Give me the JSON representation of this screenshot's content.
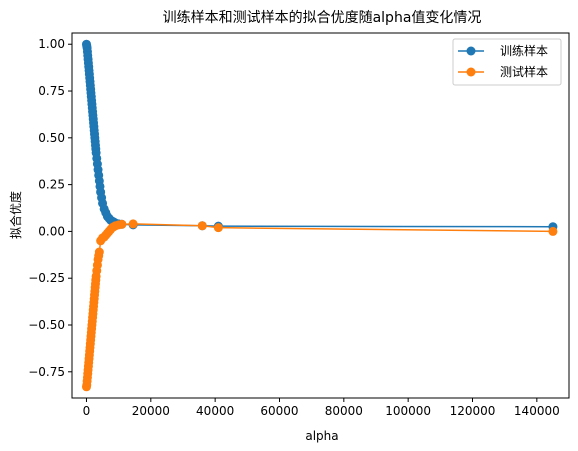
{
  "chart_data": {
    "type": "line",
    "title": "训练样本和测试样本的拟合优度随alpha值变化情况",
    "xlabel": "alpha",
    "ylabel": "拟合优度",
    "xlim": [
      -4500,
      150000
    ],
    "ylim": [
      -0.89,
      1.06
    ],
    "xticks": [
      0,
      20000,
      40000,
      60000,
      80000,
      100000,
      120000,
      140000
    ],
    "yticks": [
      -0.75,
      -0.5,
      -0.25,
      0.0,
      0.25,
      0.5,
      0.75,
      1.0
    ],
    "xtick_labels": [
      "0",
      "20000",
      "40000",
      "60000",
      "80000",
      "100000",
      "120000",
      "140000"
    ],
    "ytick_labels": [
      "−0.75",
      "−0.50",
      "−0.25",
      "0.00",
      "0.25",
      "0.50",
      "0.75",
      "1.00"
    ],
    "grid": false,
    "legend_position": "top-right",
    "series": [
      {
        "name": "训练样本",
        "color": "#1f77b4",
        "marker": "circle",
        "points": [
          [
            0,
            1.0
          ],
          [
            100,
            0.99
          ],
          [
            200,
            0.98
          ],
          [
            300,
            0.96
          ],
          [
            400,
            0.94
          ],
          [
            500,
            0.92
          ],
          [
            600,
            0.9
          ],
          [
            700,
            0.88
          ],
          [
            800,
            0.86
          ],
          [
            900,
            0.84
          ],
          [
            1000,
            0.82
          ],
          [
            1100,
            0.8
          ],
          [
            1200,
            0.78
          ],
          [
            1300,
            0.76
          ],
          [
            1400,
            0.74
          ],
          [
            1500,
            0.72
          ],
          [
            1600,
            0.7
          ],
          [
            1700,
            0.68
          ],
          [
            1800,
            0.66
          ],
          [
            1900,
            0.64
          ],
          [
            2000,
            0.62
          ],
          [
            2100,
            0.6
          ],
          [
            2200,
            0.58
          ],
          [
            2300,
            0.56
          ],
          [
            2400,
            0.54
          ],
          [
            2500,
            0.52
          ],
          [
            2600,
            0.5
          ],
          [
            2700,
            0.48
          ],
          [
            2800,
            0.46
          ],
          [
            2900,
            0.44
          ],
          [
            3000,
            0.42
          ],
          [
            3200,
            0.39
          ],
          [
            3400,
            0.36
          ],
          [
            3600,
            0.33
          ],
          [
            3800,
            0.3
          ],
          [
            4000,
            0.27
          ],
          [
            4200,
            0.24
          ],
          [
            4400,
            0.21
          ],
          [
            4700,
            0.18
          ],
          [
            5000,
            0.15
          ],
          [
            5500,
            0.12
          ],
          [
            6000,
            0.1
          ],
          [
            6500,
            0.08
          ],
          [
            7000,
            0.07
          ],
          [
            7500,
            0.06
          ],
          [
            8000,
            0.055
          ],
          [
            8500,
            0.05
          ],
          [
            9000,
            0.045
          ],
          [
            10000,
            0.04
          ],
          [
            11000,
            0.038
          ],
          [
            14500,
            0.035
          ],
          [
            36000,
            0.03
          ],
          [
            41000,
            0.028
          ],
          [
            145000,
            0.025
          ]
        ]
      },
      {
        "name": "测试样本",
        "color": "#ff7f0e",
        "marker": "circle",
        "points": [
          [
            0,
            -0.83
          ],
          [
            100,
            -0.82
          ],
          [
            200,
            -0.8
          ],
          [
            300,
            -0.78
          ],
          [
            400,
            -0.76
          ],
          [
            500,
            -0.74
          ],
          [
            600,
            -0.72
          ],
          [
            700,
            -0.7
          ],
          [
            800,
            -0.68
          ],
          [
            900,
            -0.66
          ],
          [
            1000,
            -0.64
          ],
          [
            1100,
            -0.62
          ],
          [
            1200,
            -0.6
          ],
          [
            1300,
            -0.58
          ],
          [
            1400,
            -0.56
          ],
          [
            1500,
            -0.54
          ],
          [
            1600,
            -0.52
          ],
          [
            1700,
            -0.5
          ],
          [
            1800,
            -0.48
          ],
          [
            1900,
            -0.46
          ],
          [
            2000,
            -0.44
          ],
          [
            2100,
            -0.42
          ],
          [
            2200,
            -0.4
          ],
          [
            2300,
            -0.38
          ],
          [
            2400,
            -0.36
          ],
          [
            2500,
            -0.34
          ],
          [
            2600,
            -0.32
          ],
          [
            2700,
            -0.3
          ],
          [
            2800,
            -0.28
          ],
          [
            2900,
            -0.26
          ],
          [
            3000,
            -0.24
          ],
          [
            3200,
            -0.21
          ],
          [
            3400,
            -0.18
          ],
          [
            3600,
            -0.15
          ],
          [
            3800,
            -0.13
          ],
          [
            4000,
            -0.11
          ],
          [
            4400,
            -0.05
          ],
          [
            5000,
            -0.035
          ],
          [
            5500,
            -0.03
          ],
          [
            6000,
            -0.02
          ],
          [
            6500,
            -0.01
          ],
          [
            7000,
            0.0
          ],
          [
            7500,
            0.01
          ],
          [
            8000,
            0.02
          ],
          [
            8500,
            0.025
          ],
          [
            9000,
            0.03
          ],
          [
            10000,
            0.035
          ],
          [
            11000,
            0.038
          ],
          [
            14500,
            0.04
          ],
          [
            36000,
            0.03
          ],
          [
            41000,
            0.02
          ],
          [
            145000,
            0.0
          ]
        ]
      }
    ]
  }
}
